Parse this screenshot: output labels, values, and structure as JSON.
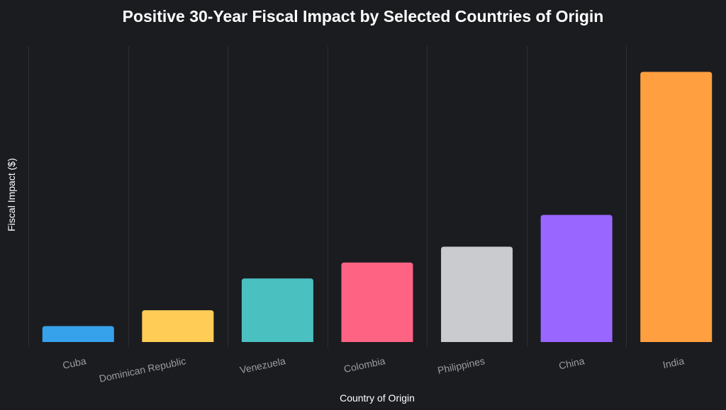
{
  "chart_data": {
    "type": "bar",
    "title": "Positive 30-Year Fiscal Impact by Selected Countries of Origin",
    "xlabel": "Country of Origin",
    "ylabel": "Fiscal Impact ($)",
    "categories": [
      "Cuba",
      "Dominican Republic",
      "Venezuela",
      "Colombia",
      "Philippines",
      "China",
      "India"
    ],
    "values": [
      5,
      10,
      20,
      25,
      30,
      40,
      85
    ],
    "colors": [
      "#36a2eb",
      "#ffcd56",
      "#4bc0c0",
      "#ff6384",
      "#c9cbcf",
      "#9966ff",
      "#ff9f40"
    ],
    "ylim": [
      0,
      88
    ],
    "y_tick_labels_shown": false,
    "grid": {
      "vertical": true,
      "horizontal": false
    },
    "gridline_color": "#2e2f33",
    "legend": "none"
  }
}
